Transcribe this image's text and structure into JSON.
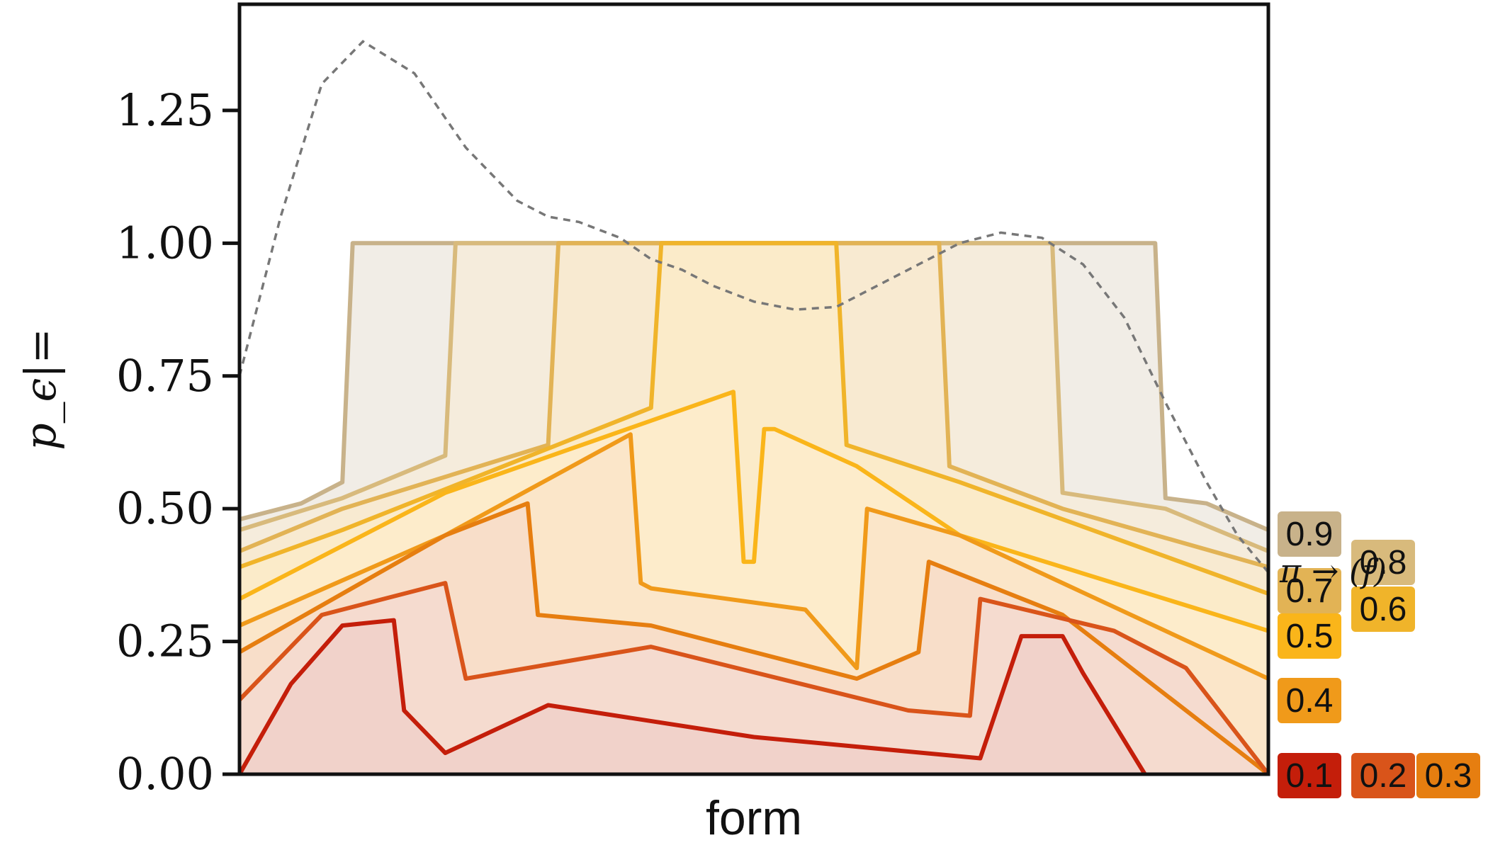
{
  "chart_data": {
    "type": "area",
    "title": "",
    "xlabel": "form",
    "ylabel": "p_ϵ|=",
    "ylim": [
      0,
      1.45
    ],
    "xlim": [
      0,
      100
    ],
    "y_ticks": [
      0.0,
      0.25,
      0.5,
      0.75,
      1.0,
      1.25
    ],
    "y_tick_labels": [
      "0.00",
      "0.25",
      "0.50",
      "0.75",
      "1.00",
      "1.25"
    ],
    "grid": false,
    "legend": "right side, outside plot",
    "annotation": "π → (f)",
    "reference_curve": {
      "style": "dashed gray",
      "x": [
        0,
        4,
        8,
        12,
        17,
        22,
        27,
        30,
        33,
        37,
        40,
        43,
        46,
        50,
        54,
        58,
        62,
        66,
        70,
        74,
        78,
        82,
        86,
        90,
        94,
        97,
        100
      ],
      "y": [
        0.75,
        1.05,
        1.3,
        1.38,
        1.32,
        1.18,
        1.08,
        1.05,
        1.04,
        1.01,
        0.97,
        0.95,
        0.92,
        0.89,
        0.875,
        0.88,
        0.92,
        0.96,
        1.0,
        1.02,
        1.01,
        0.96,
        0.86,
        0.7,
        0.55,
        0.45,
        0.38
      ]
    },
    "series": [
      {
        "name": "0.9",
        "color": "#c8b28a",
        "fill": "#f1ede6",
        "x": [
          0,
          6,
          10,
          11,
          20,
          50,
          80,
          89,
          90,
          94,
          100
        ],
        "y": [
          0.48,
          0.51,
          0.55,
          1.0,
          1.0,
          1.0,
          1.0,
          1.0,
          0.52,
          0.51,
          0.46
        ]
      },
      {
        "name": "0.8",
        "color": "#d8ba7c",
        "fill": "#f5ecdc",
        "x": [
          0,
          10,
          20,
          21,
          40,
          60,
          79,
          80,
          90,
          100
        ],
        "y": [
          0.46,
          0.52,
          0.6,
          1.0,
          1.0,
          1.0,
          1.0,
          0.53,
          0.5,
          0.42
        ]
      },
      {
        "name": "0.7",
        "color": "#e2b355",
        "fill": "#f8ead1",
        "x": [
          0,
          10,
          30,
          31,
          50,
          68,
          69,
          80,
          100
        ],
        "y": [
          0.42,
          0.5,
          0.62,
          1.0,
          1.0,
          1.0,
          0.58,
          0.5,
          0.39
        ]
      },
      {
        "name": "0.6",
        "color": "#f0b42a",
        "fill": "#fbebc9",
        "x": [
          0,
          10,
          40,
          41,
          50,
          58,
          59,
          70,
          100
        ],
        "y": [
          0.39,
          0.46,
          0.69,
          1.0,
          1.0,
          1.0,
          0.62,
          0.55,
          0.34
        ]
      },
      {
        "name": "0.5",
        "color": "#fab51a",
        "fill": "#fdeccb",
        "x": [
          0,
          20,
          48,
          49,
          50,
          51,
          52,
          60,
          70,
          100
        ],
        "y": [
          0.33,
          0.53,
          0.72,
          0.4,
          0.4,
          0.65,
          0.65,
          0.58,
          0.45,
          0.27
        ]
      },
      {
        "name": "0.4",
        "color": "#f09a1a",
        "fill": "#fbe6c9",
        "x": [
          0,
          20,
          38,
          39,
          40,
          55,
          60,
          61,
          70,
          100
        ],
        "y": [
          0.28,
          0.45,
          0.64,
          0.36,
          0.35,
          0.31,
          0.2,
          0.5,
          0.45,
          0.18
        ]
      },
      {
        "name": "0.3",
        "color": "#e67e10",
        "fill": "#f8dec9",
        "x": [
          0,
          20,
          28,
          29,
          40,
          60,
          66,
          67,
          80,
          100
        ],
        "y": [
          0.23,
          0.45,
          0.51,
          0.3,
          0.28,
          0.18,
          0.23,
          0.4,
          0.3,
          0.0
        ]
      },
      {
        "name": "0.2",
        "color": "#d9541a",
        "fill": "#f5dbcf",
        "x": [
          0,
          8,
          20,
          22,
          40,
          65,
          71,
          72,
          85,
          92,
          100
        ],
        "y": [
          0.14,
          0.3,
          0.36,
          0.18,
          0.24,
          0.12,
          0.11,
          0.33,
          0.27,
          0.2,
          0.0
        ]
      },
      {
        "name": "0.1",
        "color": "#c41e0a",
        "fill": "#f1d2ca",
        "x": [
          0,
          5,
          10,
          15,
          16,
          20,
          30,
          50,
          72,
          76,
          80,
          82,
          88
        ],
        "y": [
          0.0,
          0.17,
          0.28,
          0.29,
          0.12,
          0.04,
          0.13,
          0.07,
          0.03,
          0.26,
          0.26,
          0.19,
          0.0
        ]
      }
    ],
    "legend_badges": [
      {
        "label": "0.9",
        "color": "#c8b28a"
      },
      {
        "label": "0.8",
        "color": "#d8ba7c"
      },
      {
        "label": "0.7",
        "color": "#e2b355"
      },
      {
        "label": "0.6",
        "color": "#f0b42a"
      },
      {
        "label": "0.5",
        "color": "#fab51a"
      },
      {
        "label": "0.4",
        "color": "#f09a1a"
      },
      {
        "label": "0.1",
        "color": "#c41e0a"
      },
      {
        "label": "0.2",
        "color": "#d9541a"
      },
      {
        "label": "0.3",
        "color": "#e67e10"
      }
    ]
  }
}
